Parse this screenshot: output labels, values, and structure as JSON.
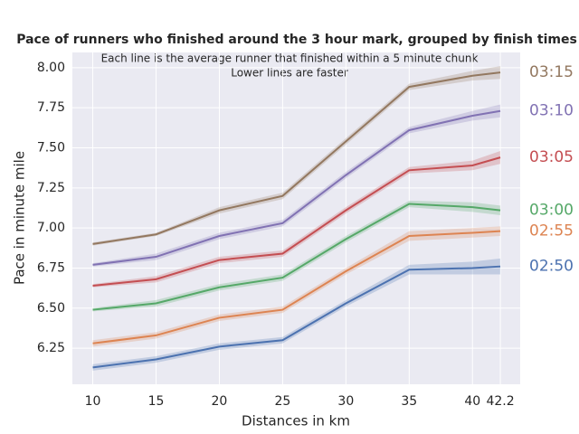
{
  "chart_data": {
    "type": "line",
    "title": "Pace of runners who finished around the 3 hour mark, grouped by finish times",
    "annotations": [
      "Each line is the average runner that finished within a 5 minute chunk",
      "Lower lines are faster"
    ],
    "x_label": "Distances in km",
    "y_label": "Pace in minute mile",
    "x": [
      10,
      15,
      20,
      25,
      30,
      35,
      40,
      42.2
    ],
    "xlim": [
      8.39,
      43.77
    ],
    "xticks": [
      10,
      15,
      20,
      25,
      30,
      35,
      40,
      42.2
    ],
    "ylim": [
      6.025,
      8.095
    ],
    "yticks": [
      {
        "value": 6.25,
        "label": "6.25"
      },
      {
        "value": 6.5,
        "label": "6.50"
      },
      {
        "value": 6.75,
        "label": "6.75"
      },
      {
        "value": 7,
        "label": "7.00"
      },
      {
        "value": 7.25,
        "label": "7.25"
      },
      {
        "value": 7.5,
        "label": "7.50"
      },
      {
        "value": 7.75,
        "label": "7.75"
      },
      {
        "value": 8,
        "label": "8.00"
      }
    ],
    "grid": true,
    "series": [
      {
        "name": "02:50",
        "color": "#4c72b0",
        "values": [
          6.13,
          6.18,
          6.26,
          6.3,
          6.53,
          6.74,
          6.75,
          6.76
        ],
        "ci": [
          0.02,
          0.02,
          0.02,
          0.02,
          0.02,
          0.03,
          0.04,
          0.05
        ]
      },
      {
        "name": "02:55",
        "color": "#dd8452",
        "values": [
          6.28,
          6.33,
          6.44,
          6.49,
          6.73,
          6.95,
          6.97,
          6.98
        ],
        "ci": [
          0.02,
          0.02,
          0.02,
          0.02,
          0.02,
          0.03,
          0.03,
          0.03
        ]
      },
      {
        "name": "03:00",
        "color": "#55a868",
        "values": [
          6.49,
          6.53,
          6.63,
          6.69,
          6.93,
          7.15,
          7.13,
          7.11
        ],
        "ci": [
          0.01,
          0.02,
          0.02,
          0.02,
          0.02,
          0.02,
          0.03,
          0.03
        ]
      },
      {
        "name": "03:05",
        "color": "#c44e52",
        "values": [
          6.64,
          6.68,
          6.8,
          6.84,
          7.11,
          7.36,
          7.39,
          7.44
        ],
        "ci": [
          0.01,
          0.02,
          0.02,
          0.02,
          0.02,
          0.02,
          0.03,
          0.04
        ]
      },
      {
        "name": "03:10",
        "color": "#8172b3",
        "values": [
          6.77,
          6.82,
          6.95,
          7.03,
          7.33,
          7.61,
          7.7,
          7.73
        ],
        "ci": [
          0.01,
          0.02,
          0.02,
          0.02,
          0.02,
          0.02,
          0.03,
          0.04
        ]
      },
      {
        "name": "03:15",
        "color": "#937860",
        "values": [
          6.9,
          6.96,
          7.11,
          7.2,
          7.54,
          7.88,
          7.95,
          7.97
        ],
        "ci": [
          0.01,
          0.01,
          0.02,
          0.02,
          0.02,
          0.02,
          0.03,
          0.04
        ]
      }
    ]
  }
}
